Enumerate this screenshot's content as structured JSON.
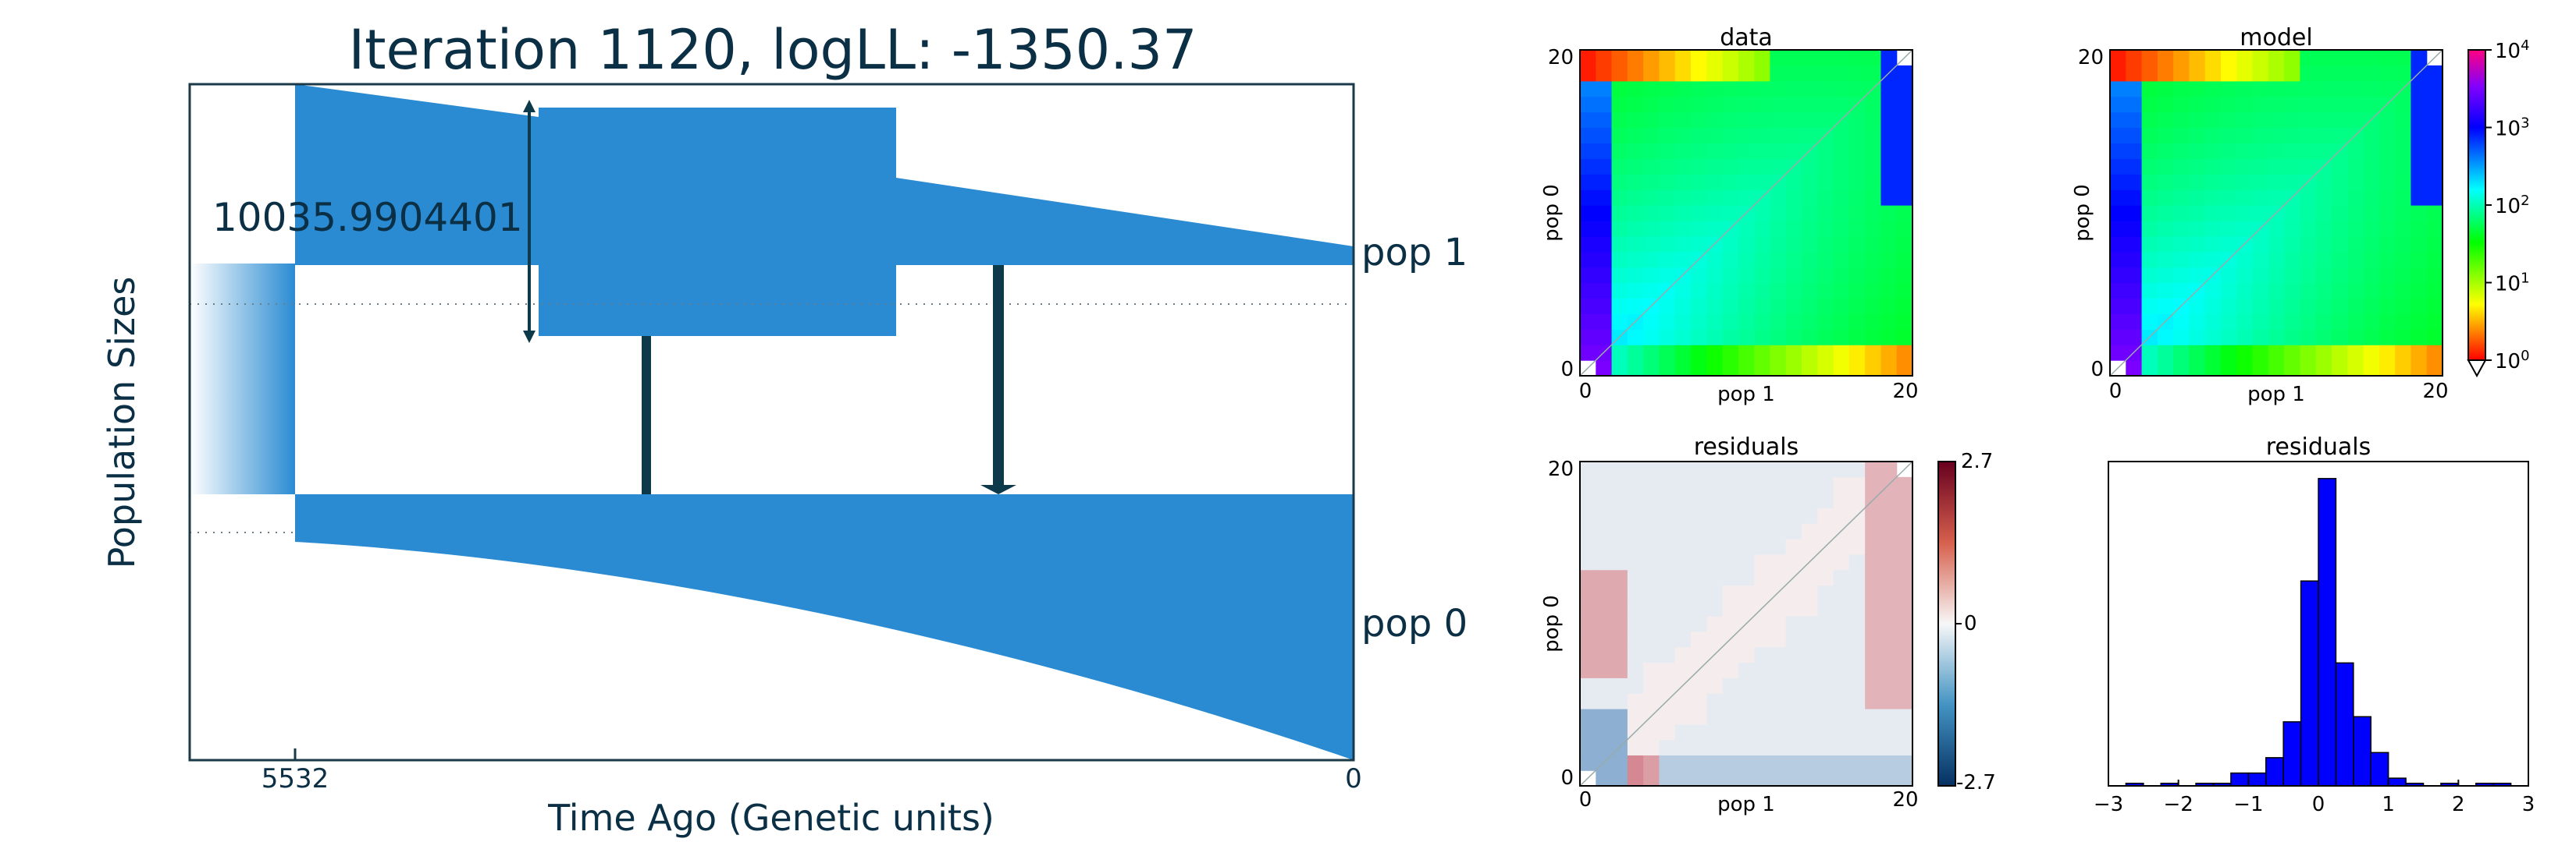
{
  "colors": {
    "pop_fill": "#2a8bd2",
    "pop_fill_light": "#ffffff",
    "frame": "#1a3a4a",
    "arrow": "#0c3a4a",
    "text": "#0b2f45",
    "hist_bar": "#0000ff"
  },
  "chart_data": [
    {
      "type": "diagram",
      "title": "Iteration 1120, logLL:   -1350.37",
      "xlabel": "Time Ago (Genetic units)",
      "ylabel": "Population Sizes",
      "x_ticks": [
        "5532",
        "0"
      ],
      "size_annotation": "10035.9904401",
      "populations": [
        "pop 1",
        "pop 0"
      ],
      "migration_arrows": 2
    },
    {
      "type": "heatmap",
      "title": "data",
      "xlabel": "pop 1",
      "ylabel": "pop 0",
      "x_ticks": [
        "0",
        "20"
      ],
      "y_ticks": [
        "0",
        "20"
      ],
      "grid_size": 21,
      "scale": "log"
    },
    {
      "type": "heatmap",
      "title": "model",
      "xlabel": "pop 1",
      "ylabel": "pop 0",
      "x_ticks": [
        "0",
        "20"
      ],
      "y_ticks": [
        "0",
        "20"
      ],
      "grid_size": 21,
      "scale": "log",
      "colorbar": {
        "base": "10",
        "exponents": [
          "4",
          "3",
          "2",
          "1",
          "0"
        ]
      }
    },
    {
      "type": "heatmap",
      "title": "residuals",
      "xlabel": "pop 1",
      "ylabel": "pop 0",
      "x_ticks": [
        "0",
        "20"
      ],
      "y_ticks": [
        "0",
        "20"
      ],
      "grid_size": 21,
      "colorbar": {
        "ticks": [
          "2.7",
          "0",
          "-2.7"
        ],
        "range": [
          -2.7,
          2.7
        ]
      }
    },
    {
      "type": "bar",
      "title": "residuals",
      "x_ticks": [
        "−3",
        "−2",
        "−1",
        "0",
        "1",
        "2",
        "3"
      ],
      "xlim": [
        -3,
        3
      ],
      "bin_width": 0.25,
      "bins": [
        {
          "x0": -2.75,
          "count": 1
        },
        {
          "x0": -2.25,
          "count": 1
        },
        {
          "x0": -1.75,
          "count": 1
        },
        {
          "x0": -1.5,
          "count": 1
        },
        {
          "x0": -1.25,
          "count": 5
        },
        {
          "x0": -1.0,
          "count": 5
        },
        {
          "x0": -0.75,
          "count": 11
        },
        {
          "x0": -0.5,
          "count": 25
        },
        {
          "x0": -0.25,
          "count": 80
        },
        {
          "x0": 0.0,
          "count": 120
        },
        {
          "x0": 0.25,
          "count": 48
        },
        {
          "x0": 0.5,
          "count": 27
        },
        {
          "x0": 0.75,
          "count": 13
        },
        {
          "x0": 1.0,
          "count": 3
        },
        {
          "x0": 1.25,
          "count": 1
        },
        {
          "x0": 1.75,
          "count": 1
        },
        {
          "x0": 2.25,
          "count": 1
        },
        {
          "x0": 2.5,
          "count": 1
        }
      ]
    }
  ]
}
